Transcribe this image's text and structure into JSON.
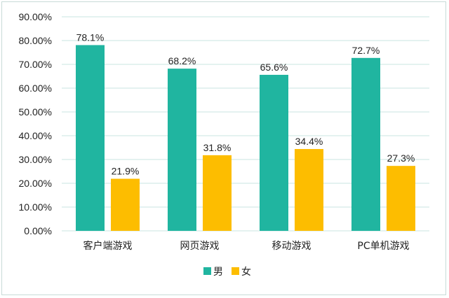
{
  "chart_data": {
    "type": "bar",
    "categories": [
      "客户端游戏",
      "网页游戏",
      "移动游戏",
      "PC单机游戏"
    ],
    "series": [
      {
        "name": "男",
        "values": [
          78.1,
          68.2,
          65.6,
          72.7
        ],
        "labels": [
          "78.1%",
          "68.2%",
          "65.6%",
          "72.7%"
        ],
        "color": "#20b5a0"
      },
      {
        "name": "女",
        "values": [
          21.9,
          31.8,
          34.4,
          27.3
        ],
        "labels": [
          "21.9%",
          "31.8%",
          "34.4%",
          "27.3%"
        ],
        "color": "#fdbd00"
      }
    ],
    "y_ticks": [
      "0.00%",
      "10.00%",
      "20.00%",
      "30.00%",
      "40.00%",
      "50.00%",
      "60.00%",
      "70.00%",
      "80.00%",
      "90.00%"
    ],
    "ylim": [
      0,
      90
    ],
    "grid": true,
    "legend_position": "bottom",
    "gridline_color": "#c9e4e0"
  }
}
